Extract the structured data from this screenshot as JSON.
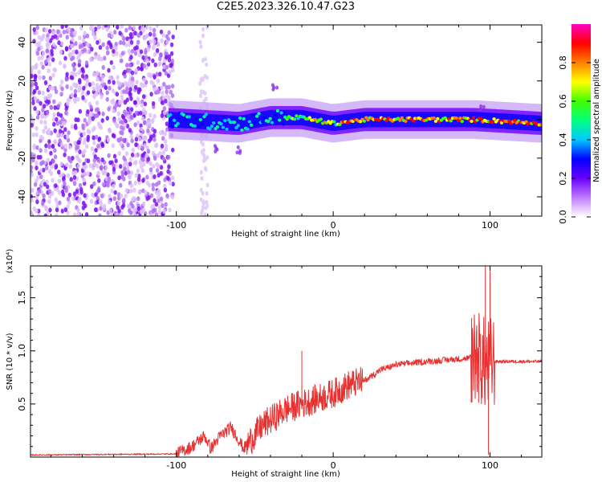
{
  "title": "C2E5.2023.326.10.47.G23",
  "chart_data": [
    {
      "type": "heatmap",
      "xlabel": "Height of straight line (km)",
      "ylabel": "Frequency (Hz)",
      "xlim": [
        -193,
        133
      ],
      "ylim": [
        -50,
        49
      ],
      "x_ticks": [
        "-100",
        "0",
        "100"
      ],
      "y_ticks": [
        "40",
        "20",
        "0",
        "-20",
        "-40"
      ],
      "y_tick_values": [
        40,
        20,
        0,
        -20,
        -40
      ],
      "x_tick_values": [
        -100,
        0,
        100
      ],
      "colorbar": {
        "label": "Normalized spectral amplitude",
        "range": [
          0,
          1
        ],
        "ticks": [
          "0.0",
          "0.2",
          "0.4",
          "0.6",
          "0.8"
        ],
        "tick_values": [
          0,
          0.2,
          0.4,
          0.6,
          0.8
        ],
        "colormap": [
          "#ffffff",
          "#c07bff",
          "#6a00ff",
          "#0000ff",
          "#00c8ff",
          "#00ff80",
          "#40ff00",
          "#ffff00",
          "#ff8000",
          "#ff0000",
          "#ff00c0"
        ]
      },
      "features": {
        "noise_region_x": [
          -193,
          -102
        ],
        "faint_band_x": [
          -85,
          -80
        ],
        "central_line": [
          {
            "x": -105,
            "y": 0
          },
          {
            "x": -60,
            "y": -2
          },
          {
            "x": -40,
            "y": 1
          },
          {
            "x": -20,
            "y": 1
          },
          {
            "x": 0,
            "y": -2
          },
          {
            "x": 20,
            "y": 0
          },
          {
            "x": 90,
            "y": 0
          },
          {
            "x": 133,
            "y": -2
          }
        ]
      }
    },
    {
      "type": "line",
      "xlabel": "Height of straight line (km)",
      "ylabel": "SNR (10 * v/v)",
      "y_multiplier": "(x10⁴)",
      "xlim": [
        -193,
        133
      ],
      "ylim": [
        0,
        1.8
      ],
      "x_ticks": [
        "-100",
        "0",
        "100"
      ],
      "x_tick_values": [
        -100,
        0,
        100
      ],
      "y_ticks": [
        "0.5",
        "1.0",
        "1.5"
      ],
      "y_tick_values": [
        0.5,
        1.0,
        1.5
      ],
      "line_color": "#e83030",
      "envelope": [
        {
          "x": -193,
          "y": 0.02
        },
        {
          "x": -100,
          "y": 0.03
        },
        {
          "x": -90,
          "y": 0.1
        },
        {
          "x": -82,
          "y": 0.2
        },
        {
          "x": -78,
          "y": 0.08
        },
        {
          "x": -72,
          "y": 0.2
        },
        {
          "x": -65,
          "y": 0.28
        },
        {
          "x": -57,
          "y": 0.08
        },
        {
          "x": -45,
          "y": 0.3
        },
        {
          "x": -30,
          "y": 0.45
        },
        {
          "x": -20,
          "y": 0.5
        },
        {
          "x": -10,
          "y": 0.55
        },
        {
          "x": 0,
          "y": 0.6
        },
        {
          "x": 10,
          "y": 0.68
        },
        {
          "x": 20,
          "y": 0.72
        },
        {
          "x": 30,
          "y": 0.82
        },
        {
          "x": 40,
          "y": 0.87
        },
        {
          "x": 60,
          "y": 0.9
        },
        {
          "x": 85,
          "y": 0.93
        },
        {
          "x": 92,
          "y": 0.95
        },
        {
          "x": 98,
          "y": 0.85
        },
        {
          "x": 102,
          "y": 0.9
        },
        {
          "x": 133,
          "y": 0.9
        }
      ],
      "spikes": [
        {
          "x": -20,
          "y": 1.0
        },
        {
          "x": 97,
          "y": 1.8
        },
        {
          "x": 100,
          "y": 1.75
        },
        {
          "x": 99,
          "y": 0.02
        }
      ]
    }
  ]
}
